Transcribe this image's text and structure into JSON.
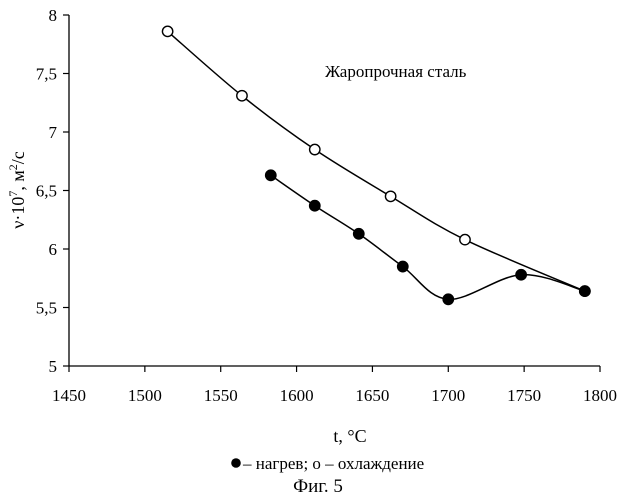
{
  "chart_data": {
    "type": "line",
    "annotation": "Жаропрочная сталь",
    "xlabel": "t, °C",
    "ylabel_prefix": "ν·10",
    "ylabel_exp": "7",
    "ylabel_sep": ", м",
    "ylabel_unit_exp": "2",
    "ylabel_suffix": "/с",
    "xlim": [
      1450,
      1800
    ],
    "ylim": [
      5,
      8
    ],
    "x_ticks": [
      1450,
      1500,
      1550,
      1600,
      1650,
      1700,
      1750,
      1800
    ],
    "x_tick_labels": [
      "1450",
      "1500",
      "1550",
      "1600",
      "1650",
      "1700",
      "1750",
      "1800"
    ],
    "y_ticks": [
      5,
      5.5,
      6,
      6.5,
      7,
      7.5,
      8
    ],
    "y_tick_labels": [
      "5",
      "5,5",
      "6",
      "6,5",
      "7",
      "7,5",
      "8"
    ],
    "grid": false,
    "series": [
      {
        "marker": "open-circle",
        "points": [
          {
            "x": 1515,
            "y": 7.86
          },
          {
            "x": 1564,
            "y": 7.31
          },
          {
            "x": 1612,
            "y": 6.85
          },
          {
            "x": 1662,
            "y": 6.45
          },
          {
            "x": 1711,
            "y": 6.08
          },
          {
            "x": 1790,
            "y": 5.64
          }
        ]
      },
      {
        "marker": "filled-circle",
        "points": [
          {
            "x": 1583,
            "y": 6.63
          },
          {
            "x": 1612,
            "y": 6.37
          },
          {
            "x": 1641,
            "y": 6.13
          },
          {
            "x": 1670,
            "y": 5.85
          },
          {
            "x": 1700,
            "y": 5.57
          },
          {
            "x": 1748,
            "y": 5.78
          },
          {
            "x": 1790,
            "y": 5.64
          }
        ]
      }
    ],
    "legend_text": " – нагрев; о – охлаждение",
    "caption": "Фиг. 5"
  }
}
